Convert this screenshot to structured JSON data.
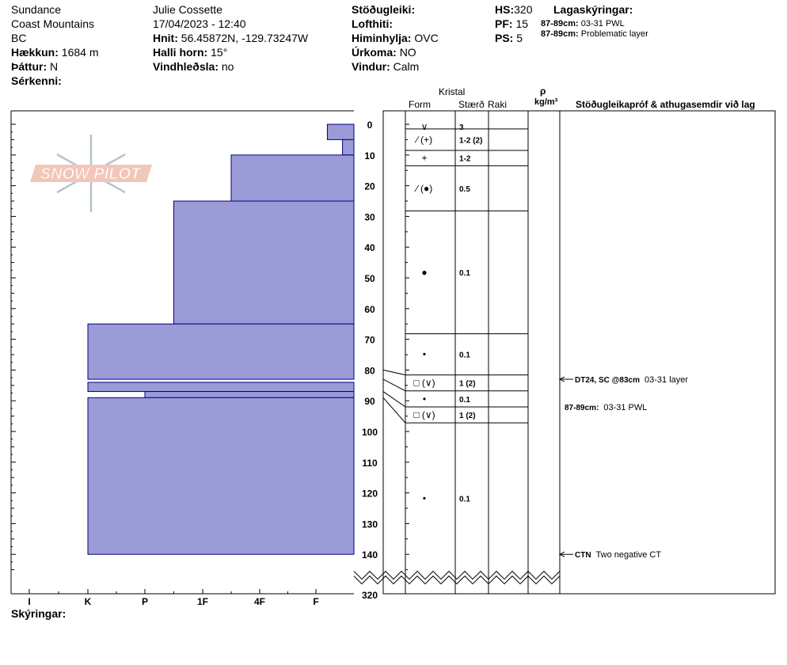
{
  "header": {
    "col1": [
      "Sundance",
      "Coast Mountains",
      "BC"
    ],
    "elevation": {
      "label": "Hækkun:",
      "value": "1684 m"
    },
    "aspect": {
      "label": "Þáttur:",
      "value": "N"
    },
    "features": {
      "label": "Sérkenni:"
    },
    "observer": "Julie Cossette",
    "datetime": "17/04/2023 - 12:40",
    "coords": {
      "label": "Hnit:",
      "value": "56.45872N, -129.73247W"
    },
    "slope": {
      "label": "Halli horn:",
      "value": "15°"
    },
    "wind_loading": {
      "label": "Vindhleðsla:",
      "value": "no"
    },
    "stability": {
      "label": "Stöðugleiki:"
    },
    "air_temp": {
      "label": "Lofthiti:"
    },
    "sky": {
      "label": "Himinhylja:",
      "value": "OVC"
    },
    "precip": {
      "label": "Úrkoma:",
      "value": "NO"
    },
    "wind": {
      "label": "Vindur:",
      "value": "Calm"
    },
    "hs": {
      "label": "HS:",
      "value": "320"
    },
    "pf": {
      "label": "PF:",
      "value": "15"
    },
    "ps": {
      "label": "PS:",
      "value": "5"
    },
    "legend_title": "Lagaskýringar:",
    "legend_items": [
      {
        "depth": "87-89cm:",
        "text": "03-31 PWL"
      },
      {
        "depth": "87-89cm:",
        "text": "Problematic layer"
      }
    ]
  },
  "columns": {
    "kristal": "Kristal",
    "form": "Form",
    "size": "Stærð",
    "moisture": "Raki",
    "density_symbol": "ρ",
    "density_unit": "kg/m³",
    "tests": "Stöðugleikapróf & athugasemdir við lag"
  },
  "logo_text": "SNOW PILOT",
  "footer": {
    "legend_label": "Skýringar:"
  },
  "colors": {
    "hardness_fill": "#9b9bd8",
    "hardness_stroke": "#000080",
    "logo": "#f2c6b8",
    "snowflake": "#b6c4cc"
  },
  "chart_data": {
    "type": "bar",
    "orientation": "horizontal",
    "xlabel": "",
    "ylabel": "",
    "hardness_ticks": [
      "I",
      "K",
      "P",
      "1F",
      "4F",
      "F"
    ],
    "depth_ticks": [
      0,
      10,
      20,
      30,
      40,
      50,
      60,
      70,
      80,
      90,
      100,
      110,
      120,
      130,
      140
    ],
    "depth_range": [
      -4,
      150
    ],
    "depth_bottom_label": "320",
    "layers": [
      {
        "top": 0,
        "bottom": 5,
        "hardness": 5.3,
        "form": "∨",
        "size": "3"
      },
      {
        "top": 5,
        "bottom": 10,
        "hardness": 5.7,
        "form": "∕ (+)",
        "size": "1-2 (2)"
      },
      {
        "top": 10,
        "bottom": 25,
        "hardness": 3.5,
        "form": "+",
        "size": "1-2"
      },
      {
        "top": 25,
        "bottom": 65,
        "hardness": 2.5,
        "form": "∕ (●)",
        "size": "0.5"
      },
      {
        "top": 65,
        "bottom": 83,
        "hardness": 1.0,
        "form": "●",
        "size": "0.1"
      },
      {
        "top": 84,
        "bottom": 87,
        "hardness": 1.0,
        "form": "•",
        "size": "0.1"
      },
      {
        "top": 87,
        "bottom": 89,
        "hardness": 2.0,
        "form": "□ (∨)",
        "size": "1 (2)"
      },
      {
        "top": 89,
        "bottom": 140,
        "hardness": 1.0,
        "form": "□ (∨)",
        "size": "1 (2)"
      }
    ],
    "table_rows": [
      {
        "top": 0,
        "bottom": 1.5,
        "form": "∨",
        "size": "3"
      },
      {
        "top": 1.5,
        "bottom": 8.5,
        "form": "∕ (+)",
        "size": "1-2 (2)"
      },
      {
        "top": 8.5,
        "bottom": 13.5,
        "form": "+",
        "size": "1-2"
      },
      {
        "top": 13.5,
        "bottom": 28.2,
        "form": "∕ (●)",
        "size": "0.5"
      },
      {
        "top": 28.2,
        "bottom": 68.2,
        "form": "●",
        "size": "0.1"
      },
      {
        "top": 68.2,
        "bottom": 81.6,
        "form": "•",
        "size": "0.1"
      },
      {
        "top": 81.6,
        "bottom": 86.8,
        "form": "□ (∨)",
        "size": "1 (2)"
      },
      {
        "top": 86.8,
        "bottom": 92,
        "form": "•",
        "size": "0.1"
      },
      {
        "top": 92,
        "bottom": 97.2,
        "form": "□ (∨)",
        "size": "1 (2)"
      },
      {
        "top": 97.2,
        "bottom": 146.4,
        "form": "•",
        "size": "0.1"
      }
    ],
    "annotations": [
      {
        "depth": 83,
        "label": "DT24, SC @83cm",
        "text": "03-31 layer",
        "arrow": true
      },
      {
        "depth": 92,
        "label": "87-89cm:",
        "text": "03-31 PWL",
        "arrow": false
      },
      {
        "depth": 140,
        "label": "CTN",
        "text": "Two negative CT",
        "arrow": true
      }
    ]
  }
}
